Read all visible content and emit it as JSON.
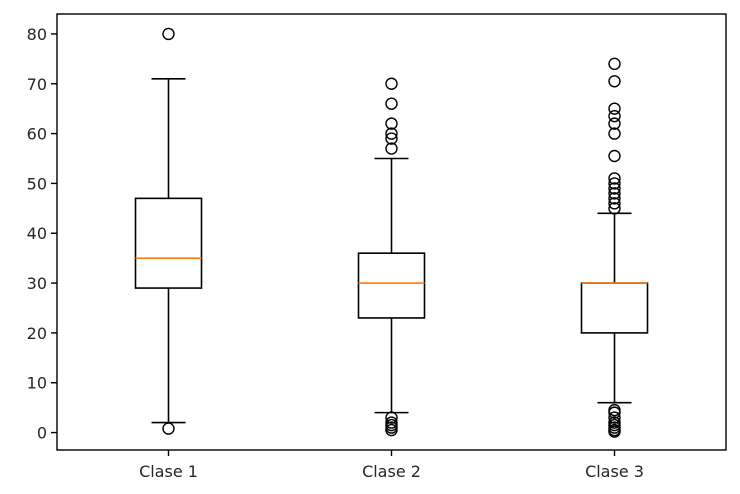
{
  "chart_data": {
    "type": "box",
    "title": "",
    "xlabel": "",
    "ylabel": "",
    "categories": [
      "Clase 1",
      "Clase 2",
      "Clase 3"
    ],
    "ylim": [
      -3.5,
      84
    ],
    "yticks": [
      0,
      10,
      20,
      30,
      40,
      50,
      60,
      70,
      80
    ],
    "grid": false,
    "boxes": [
      {
        "name": "Clase 1",
        "whisker_low": 2,
        "q1": 29,
        "median": 35,
        "q3": 47,
        "whisker_high": 71,
        "fliers": [
          80,
          0.8
        ]
      },
      {
        "name": "Clase 2",
        "whisker_low": 4,
        "q1": 23,
        "median": 30,
        "q3": 36,
        "whisker_high": 55,
        "fliers": [
          70,
          66,
          62,
          60,
          59,
          57,
          3,
          2,
          1.5,
          1,
          0.5
        ]
      },
      {
        "name": "Clase 3",
        "whisker_low": 6,
        "q1": 20,
        "median": 30,
        "q3": 30,
        "whisker_high": 44,
        "fliers": [
          74,
          70.5,
          65,
          63.5,
          62,
          60,
          55.5,
          51,
          50,
          49,
          48,
          47,
          46,
          45,
          4.5,
          4,
          3,
          2,
          1.5,
          1,
          0.5,
          0.2
        ]
      }
    ],
    "colors": {
      "box": "#000000",
      "median": "#ff7f0e"
    }
  }
}
